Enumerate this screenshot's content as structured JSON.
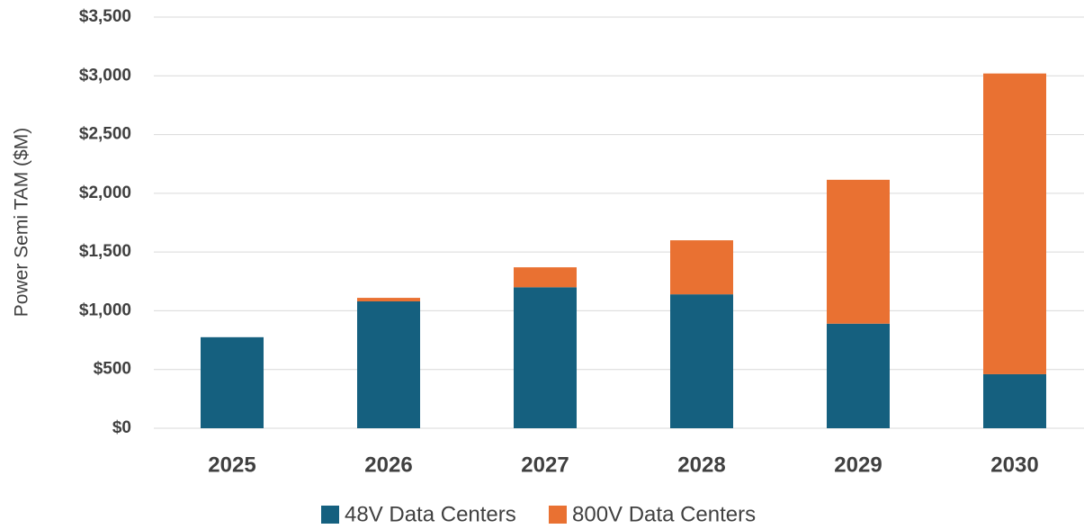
{
  "chart_data": {
    "type": "stacked_bar",
    "y_axis_label": "Power Semi TAM ($M)",
    "categories": [
      "2025",
      "2026",
      "2027",
      "2028",
      "2029",
      "2030"
    ],
    "series": [
      {
        "name": "48V Data Centers",
        "color": "#15607f",
        "values": [
          775,
          1080,
          1200,
          1140,
          890,
          460
        ]
      },
      {
        "name": "800V Data Centers",
        "color": "#e97132",
        "values": [
          0,
          30,
          170,
          460,
          1225,
          2560
        ]
      }
    ],
    "ylim": [
      0,
      3500
    ],
    "yticks": [
      {
        "value": 0,
        "label": "$0"
      },
      {
        "value": 500,
        "label": "$500"
      },
      {
        "value": 1000,
        "label": "$1,000"
      },
      {
        "value": 1500,
        "label": "$1,500"
      },
      {
        "value": 2000,
        "label": "$2,000"
      },
      {
        "value": 2500,
        "label": "$2,500"
      },
      {
        "value": 3000,
        "label": "$3,000"
      },
      {
        "value": 3500,
        "label": "$3,500"
      }
    ],
    "grid": true,
    "legend": "bottom"
  }
}
